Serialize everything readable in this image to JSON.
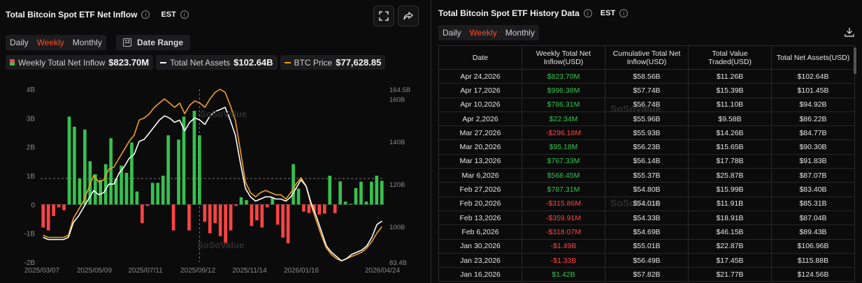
{
  "left": {
    "title": "Total Bitcoin Spot ETF Net Inflow",
    "timezone": "EST",
    "tabs": [
      "Daily",
      "Weekly",
      "Monthly"
    ],
    "active_tab": "Weekly",
    "date_range_label": "Date Range",
    "legend": [
      {
        "label": "Weekly Total Net Inflow",
        "value": "$823.70M"
      },
      {
        "label": "Total Net Assets",
        "value": "$102.64B"
      },
      {
        "label": "BTC Price",
        "value": "$77,628.85"
      }
    ],
    "watermark": "SoSoValue"
  },
  "chart_data": {
    "type": "bar",
    "x_tick_labels": [
      "2025/03/07",
      "2025/05/09",
      "2025/07/11",
      "2025/09/12",
      "2025/11/14",
      "2026/01/16",
      "2026/04/24"
    ],
    "left_axis_ticks": [
      "4B",
      "3B",
      "2B",
      "1B",
      "0",
      "-1B",
      "-2B"
    ],
    "left_ylim": [
      -2,
      4
    ],
    "right_axis_ticks": [
      "164.5B",
      "160B",
      "140B",
      "120B",
      "100B",
      "83.4B"
    ],
    "right_ylim": [
      83.4,
      164.5
    ],
    "crosshair_value": 0.9,
    "series": [
      {
        "name": "Weekly Total Net Inflow",
        "kind": "bar",
        "color_pos": "#36c24f",
        "color_neg": "#ff4444",
        "values": [
          -0.8,
          -0.9,
          -0.4,
          -0.1,
          -0.2,
          3.05,
          2.7,
          0.9,
          2.6,
          1.5,
          1.05,
          0.85,
          1.4,
          2.3,
          0.9,
          1.35,
          1.1,
          2.15,
          0.45,
          -0.65,
          -0.05,
          0.75,
          0.75,
          1.0,
          2.4,
          -0.9,
          2.25,
          3.05,
          -0.9,
          3.25,
          2.4,
          -0.6,
          -1.0,
          -0.65,
          -1.1,
          -1.35,
          -0.9,
          -0.05,
          0.25,
          0.15,
          -0.75,
          -0.55,
          -0.8,
          -0.1,
          0.25,
          -0.7,
          -1.15,
          -1.35,
          1.4,
          0.55,
          -0.25,
          -0.3,
          -0.25,
          -0.35,
          -0.32,
          1.0,
          -0.3,
          0.8,
          0.1,
          0.02,
          0.57,
          0.79,
          0.1,
          0.79,
          1.0,
          0.82
        ]
      },
      {
        "name": "Total Net Assets",
        "kind": "line",
        "color": "#ffffff",
        "axis": "right",
        "values": [
          95,
          94,
          94,
          94,
          94,
          95,
          102,
          105,
          109,
          113,
          117,
          115,
          116,
          120,
          120,
          125,
          128,
          132,
          134,
          140,
          141,
          144,
          147,
          150,
          152,
          151,
          149,
          150,
          145,
          149,
          151,
          150,
          148,
          152,
          154,
          155,
          156,
          150,
          143,
          130,
          118,
          114,
          112,
          113,
          114,
          114,
          113,
          113,
          112,
          114,
          118,
          122,
          119,
          111,
          105,
          98,
          91,
          88,
          86,
          84,
          85,
          87,
          88,
          89,
          91,
          95,
          101,
          102.64
        ]
      },
      {
        "name": "BTC Price",
        "kind": "line",
        "color": "#f0a020",
        "axis": "right",
        "values": [
          96,
          95,
          95,
          95,
          95,
          96,
          104,
          108,
          112,
          118,
          124,
          121,
          122,
          127,
          128,
          132,
          136,
          140,
          143,
          150,
          151,
          153,
          156,
          158,
          160,
          158,
          156,
          158,
          153,
          157,
          159,
          158,
          156,
          160,
          163,
          164.5,
          163,
          157,
          150,
          136,
          121,
          116,
          114,
          116,
          117,
          116,
          115,
          115,
          113,
          116,
          120,
          123,
          119,
          110,
          103,
          96,
          90,
          87,
          85,
          84,
          85,
          86,
          87,
          88,
          90,
          93,
          97,
          100
        ]
      }
    ]
  },
  "right": {
    "title": "Total Bitcoin Spot ETF History Data",
    "timezone": "EST",
    "tabs": [
      "Daily",
      "Weekly",
      "Monthly"
    ],
    "active_tab": "Weekly",
    "columns": [
      "Date",
      "Weekly Total Net Inflow(USD)",
      "Cumulative Total Net Inflow(USD)",
      "Total Value Traded(USD)",
      "Total Net Assets(USD)"
    ],
    "rows": [
      {
        "date": "Apr 24,2026",
        "inflow": "$823.70M",
        "sign": "pos",
        "cum": "$58.56B",
        "traded": "$11.26B",
        "assets": "$102.64B"
      },
      {
        "date": "Apr 17,2026",
        "inflow": "$996.38M",
        "sign": "pos",
        "cum": "$57.74B",
        "traded": "$15.39B",
        "assets": "$101.45B"
      },
      {
        "date": "Apr 10,2026",
        "inflow": "$786.31M",
        "sign": "pos",
        "cum": "$56.74B",
        "traded": "$11.10B",
        "assets": "$94.92B"
      },
      {
        "date": "Apr 2,2026",
        "inflow": "$22.34M",
        "sign": "pos",
        "cum": "$55.96B",
        "traded": "$9.58B",
        "assets": "$86.22B"
      },
      {
        "date": "Mar 27,2026",
        "inflow": "-$296.18M",
        "sign": "neg",
        "cum": "$55.93B",
        "traded": "$14.26B",
        "assets": "$84.77B"
      },
      {
        "date": "Mar 20,2026",
        "inflow": "$95.18M",
        "sign": "pos",
        "cum": "$56.23B",
        "traded": "$15.65B",
        "assets": "$90.30B"
      },
      {
        "date": "Mar 13,2026",
        "inflow": "$767.33M",
        "sign": "pos",
        "cum": "$56.14B",
        "traded": "$17.78B",
        "assets": "$91.83B"
      },
      {
        "date": "Mar 6,2026",
        "inflow": "$568.45M",
        "sign": "pos",
        "cum": "$55.37B",
        "traded": "$25.87B",
        "assets": "$87.07B"
      },
      {
        "date": "Feb 27,2026",
        "inflow": "$787.31M",
        "sign": "pos",
        "cum": "$54.80B",
        "traded": "$15.99B",
        "assets": "$83.40B"
      },
      {
        "date": "Feb 20,2026",
        "inflow": "-$315.86M",
        "sign": "neg",
        "cum": "$54.01B",
        "traded": "$11.91B",
        "assets": "$85.31B"
      },
      {
        "date": "Feb 13,2026",
        "inflow": "-$359.91M",
        "sign": "neg",
        "cum": "$54.33B",
        "traded": "$18.91B",
        "assets": "$87.04B"
      },
      {
        "date": "Feb 6,2026",
        "inflow": "-$318.07M",
        "sign": "neg",
        "cum": "$54.69B",
        "traded": "$46.15B",
        "assets": "$89.43B"
      },
      {
        "date": "Jan 30,2026",
        "inflow": "-$1.49B",
        "sign": "neg",
        "cum": "$55.01B",
        "traded": "$22.87B",
        "assets": "$106.96B"
      },
      {
        "date": "Jan 23,2026",
        "inflow": "-$1.33B",
        "sign": "neg",
        "cum": "$56.49B",
        "traded": "$17.45B",
        "assets": "$115.88B"
      },
      {
        "date": "Jan 16,2026",
        "inflow": "$1.42B",
        "sign": "pos",
        "cum": "$57.82B",
        "traded": "$21.77B",
        "assets": "$124.56B"
      }
    ],
    "watermark": "SoSoValue"
  }
}
